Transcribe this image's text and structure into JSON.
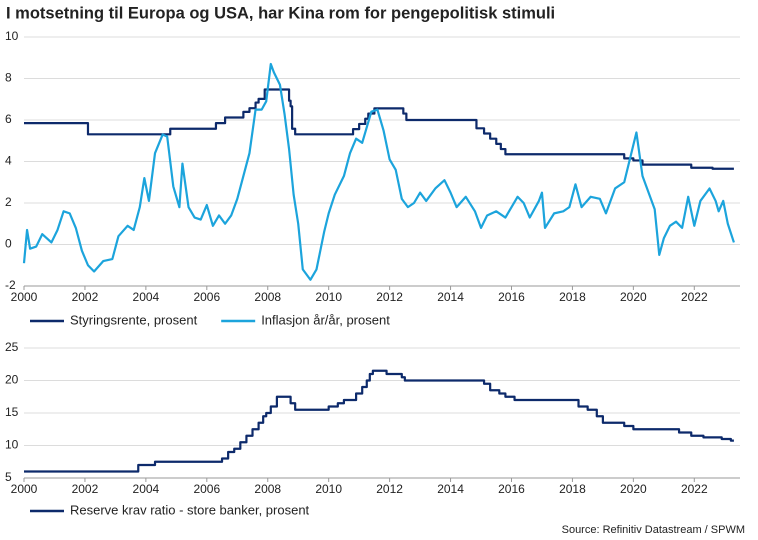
{
  "source": "Source: Refinitiv Datastream / SPWM",
  "chart_data": [
    {
      "type": "line",
      "title": "I motsetning til Europa og USA, har Kina rom for pengepolitisk stimuli",
      "xlim": [
        2000,
        2023.5
      ],
      "xticks": [
        2000,
        2002,
        2004,
        2006,
        2008,
        2010,
        2012,
        2014,
        2016,
        2018,
        2020,
        2022
      ],
      "ylim": [
        -2,
        10
      ],
      "yticks": [
        -2,
        0,
        2,
        4,
        6,
        8,
        10
      ],
      "grid": true,
      "series": [
        {
          "name": "Styringsrente, prosent",
          "color": "#0d2a6b",
          "x": [
            2000,
            2002.1,
            2002.1,
            2004.8,
            2004.8,
            2006.3,
            2006.3,
            2006.6,
            2006.6,
            2007.2,
            2007.2,
            2007.4,
            2007.4,
            2007.6,
            2007.6,
            2007.7,
            2007.7,
            2007.9,
            2007.9,
            2008.7,
            2008.7,
            2008.75,
            2008.75,
            2008.8,
            2008.8,
            2008.9,
            2008.9,
            2010.8,
            2010.8,
            2011.0,
            2011.0,
            2011.2,
            2011.2,
            2011.3,
            2011.3,
            2011.5,
            2011.5,
            2012.45,
            2012.45,
            2012.55,
            2012.55,
            2014.85,
            2014.85,
            2015.1,
            2015.1,
            2015.3,
            2015.3,
            2015.5,
            2015.5,
            2015.65,
            2015.65,
            2015.8,
            2015.8,
            2019.7,
            2019.7,
            2020.0,
            2020.0,
            2020.3,
            2020.3,
            2021.9,
            2021.9,
            2022.6,
            2022.6,
            2023.3
          ],
          "values": [
            5.85,
            5.85,
            5.31,
            5.31,
            5.58,
            5.58,
            5.85,
            5.85,
            6.12,
            6.12,
            6.39,
            6.39,
            6.57,
            6.57,
            6.84,
            6.84,
            7.02,
            7.02,
            7.47,
            7.47,
            6.93,
            6.93,
            6.66,
            6.66,
            5.58,
            5.58,
            5.31,
            5.31,
            5.56,
            5.56,
            5.81,
            5.81,
            6.06,
            6.06,
            6.31,
            6.31,
            6.56,
            6.56,
            6.31,
            6.31,
            6.0,
            6.0,
            5.6,
            5.6,
            5.35,
            5.35,
            5.1,
            5.1,
            4.85,
            4.85,
            4.6,
            4.6,
            4.35,
            4.35,
            4.15,
            4.15,
            4.05,
            4.05,
            3.85,
            3.85,
            3.7,
            3.7,
            3.65,
            3.65
          ]
        },
        {
          "name": "Inflasjon år/år, prosent",
          "color": "#1ca4dc",
          "x": [
            2000.0,
            2000.1,
            2000.2,
            2000.4,
            2000.6,
            2000.9,
            2001.1,
            2001.3,
            2001.5,
            2001.7,
            2001.9,
            2002.1,
            2002.3,
            2002.6,
            2002.9,
            2003.1,
            2003.4,
            2003.6,
            2003.8,
            2003.95,
            2004.1,
            2004.3,
            2004.55,
            2004.7,
            2004.9,
            2005.1,
            2005.2,
            2005.4,
            2005.6,
            2005.8,
            2006.0,
            2006.2,
            2006.4,
            2006.6,
            2006.8,
            2007.0,
            2007.2,
            2007.4,
            2007.6,
            2007.8,
            2007.95,
            2008.1,
            2008.2,
            2008.4,
            2008.55,
            2008.7,
            2008.85,
            2009.0,
            2009.15,
            2009.4,
            2009.6,
            2009.85,
            2010.0,
            2010.2,
            2010.5,
            2010.7,
            2010.9,
            2011.1,
            2011.4,
            2011.6,
            2011.8,
            2012.0,
            2012.2,
            2012.4,
            2012.6,
            2012.8,
            2013.0,
            2013.2,
            2013.5,
            2013.8,
            2014.0,
            2014.2,
            2014.5,
            2014.8,
            2015.0,
            2015.2,
            2015.5,
            2015.8,
            2016.0,
            2016.2,
            2016.4,
            2016.6,
            2016.9,
            2017.0,
            2017.1,
            2017.4,
            2017.7,
            2017.9,
            2018.1,
            2018.3,
            2018.6,
            2018.9,
            2019.1,
            2019.4,
            2019.7,
            2019.95,
            2020.1,
            2020.3,
            2020.5,
            2020.7,
            2020.85,
            2021.0,
            2021.2,
            2021.4,
            2021.6,
            2021.8,
            2022.0,
            2022.2,
            2022.5,
            2022.7,
            2022.8,
            2022.95,
            2023.1,
            2023.3
          ],
          "values": [
            -0.9,
            0.7,
            -0.2,
            -0.1,
            0.5,
            0.1,
            0.7,
            1.6,
            1.5,
            0.8,
            -0.3,
            -1.0,
            -1.3,
            -0.8,
            -0.7,
            0.4,
            0.9,
            0.7,
            1.8,
            3.2,
            2.1,
            4.4,
            5.3,
            5.2,
            2.8,
            1.8,
            3.9,
            1.8,
            1.3,
            1.2,
            1.9,
            0.9,
            1.4,
            1.0,
            1.4,
            2.2,
            3.3,
            4.4,
            6.5,
            6.5,
            6.9,
            8.7,
            8.3,
            7.7,
            6.3,
            4.6,
            2.4,
            1.0,
            -1.2,
            -1.7,
            -1.2,
            0.6,
            1.5,
            2.4,
            3.3,
            4.4,
            5.1,
            4.9,
            6.4,
            6.5,
            5.5,
            4.1,
            3.6,
            2.2,
            1.8,
            2.0,
            2.5,
            2.1,
            2.7,
            3.1,
            2.5,
            1.8,
            2.3,
            1.6,
            0.8,
            1.4,
            1.6,
            1.3,
            1.8,
            2.3,
            2.0,
            1.3,
            2.1,
            2.5,
            0.8,
            1.5,
            1.6,
            1.8,
            2.9,
            1.8,
            2.3,
            2.2,
            1.5,
            2.7,
            3.0,
            4.5,
            5.4,
            3.3,
            2.5,
            1.7,
            -0.5,
            0.3,
            0.9,
            1.1,
            0.8,
            2.3,
            0.9,
            2.1,
            2.7,
            2.1,
            1.6,
            2.1,
            1.0,
            0.1
          ]
        }
      ]
    },
    {
      "type": "line",
      "xlim": [
        2000,
        2023.5
      ],
      "xticks": [
        2000,
        2002,
        2004,
        2006,
        2008,
        2010,
        2012,
        2014,
        2016,
        2018,
        2020,
        2022
      ],
      "ylim": [
        5,
        25
      ],
      "yticks": [
        5,
        10,
        15,
        20,
        25
      ],
      "grid": true,
      "series": [
        {
          "name": "Reserve krav ratio - store banker, prosent",
          "color": "#0d2a6b",
          "x": [
            2000,
            2003.75,
            2003.75,
            2004.3,
            2004.3,
            2006.5,
            2006.5,
            2006.7,
            2006.7,
            2006.9,
            2006.9,
            2007.1,
            2007.1,
            2007.3,
            2007.3,
            2007.5,
            2007.5,
            2007.7,
            2007.7,
            2007.85,
            2007.85,
            2007.95,
            2007.95,
            2008.1,
            2008.1,
            2008.3,
            2008.3,
            2008.75,
            2008.75,
            2008.9,
            2008.9,
            2010.0,
            2010.0,
            2010.3,
            2010.3,
            2010.5,
            2010.5,
            2010.9,
            2010.9,
            2011.1,
            2011.1,
            2011.25,
            2011.25,
            2011.35,
            2011.35,
            2011.45,
            2011.45,
            2011.9,
            2011.9,
            2012.4,
            2012.4,
            2012.5,
            2012.5,
            2015.1,
            2015.1,
            2015.3,
            2015.3,
            2015.6,
            2015.6,
            2015.8,
            2015.8,
            2016.1,
            2016.1,
            2018.2,
            2018.2,
            2018.5,
            2018.5,
            2018.8,
            2018.8,
            2019.0,
            2019.0,
            2019.7,
            2019.7,
            2020.0,
            2020.0,
            2021.5,
            2021.5,
            2021.9,
            2021.9,
            2022.3,
            2022.3,
            2022.9,
            2022.9,
            2023.2,
            2023.2,
            2023.3
          ],
          "values": [
            6,
            6,
            7,
            7,
            7.5,
            7.5,
            8,
            8,
            9,
            9,
            9.5,
            9.5,
            10.5,
            10.5,
            11.5,
            11.5,
            12.5,
            12.5,
            13.5,
            13.5,
            14.5,
            14.5,
            15,
            15,
            16,
            16,
            17.5,
            17.5,
            16.5,
            16.5,
            15.5,
            15.5,
            16,
            16,
            16.5,
            16.5,
            17,
            17,
            18,
            18,
            19,
            19,
            20,
            20,
            21,
            21,
            21.5,
            21.5,
            21,
            21,
            20.5,
            20.5,
            20,
            20,
            19.5,
            19.5,
            18.5,
            18.5,
            18,
            18,
            17.5,
            17.5,
            17,
            17,
            16,
            16,
            15.5,
            15.5,
            14.5,
            14.5,
            13.5,
            13.5,
            13,
            13,
            12.5,
            12.5,
            12,
            12,
            11.5,
            11.5,
            11.25,
            11.25,
            11,
            11,
            10.75,
            10.75
          ]
        }
      ]
    }
  ]
}
